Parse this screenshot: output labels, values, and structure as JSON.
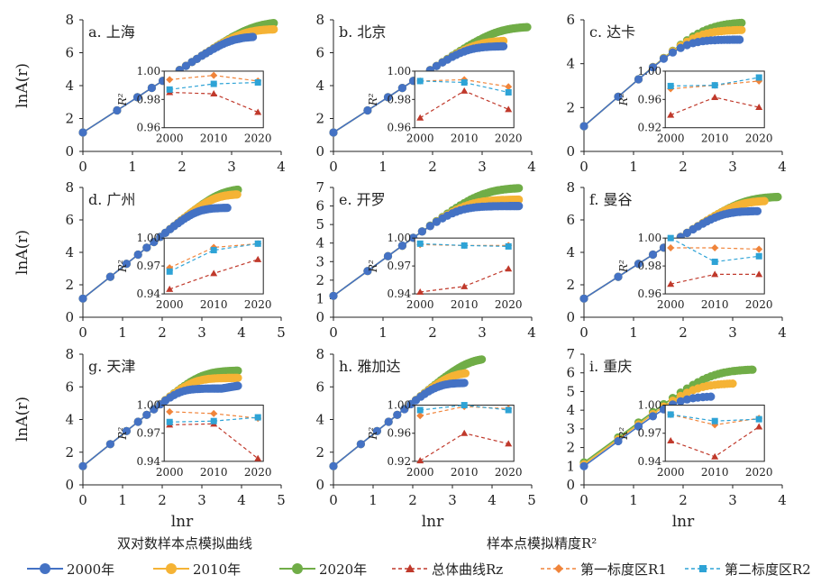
{
  "figure": {
    "y_label_main": "lnA(r)",
    "x_label_main": "lnr",
    "legend_left_title": "双对数样本点模拟曲线",
    "legend_right_title": "样本点模拟精度R²",
    "legend_items": [
      {
        "label": "2000年",
        "color": "#4472C4",
        "kind": "dot"
      },
      {
        "label": "2010年",
        "color": "#F5B335",
        "kind": "dot"
      },
      {
        "label": "2020年",
        "color": "#70AD47",
        "kind": "dot"
      },
      {
        "label": "总体曲线Rz",
        "color": "#C0392B",
        "kind": "triangle"
      },
      {
        "label": "第一标度区R1",
        "color": "#F0843A",
        "kind": "diamond"
      },
      {
        "label": "第二标度区R2",
        "color": "#2EA3D6",
        "kind": "square"
      }
    ]
  },
  "chart_data": [
    {
      "type": "scatter",
      "title": "a. 上海",
      "xlim": [
        0,
        4
      ],
      "ylim": [
        0,
        8
      ],
      "yticks": [
        0,
        2,
        4,
        6,
        8
      ],
      "xticks": [
        0,
        1,
        2,
        3,
        4
      ],
      "x": [
        0,
        0.69,
        1.1,
        1.39,
        1.61,
        1.79,
        1.95,
        2.08,
        2.2,
        2.3,
        2.4,
        2.48,
        2.56,
        2.64,
        2.71,
        2.77,
        2.83,
        2.89,
        2.94,
        3.0,
        3.04,
        3.09,
        3.14,
        3.18,
        3.22,
        3.26,
        3.3,
        3.33,
        3.37,
        3.4,
        3.43,
        3.47,
        3.5,
        3.53,
        3.56,
        3.58,
        3.61,
        3.64,
        3.66,
        3.69,
        3.71,
        3.74,
        3.76,
        3.78,
        3.81,
        3.83,
        3.85,
        3.87,
        3.89,
        3.91
      ],
      "series": [
        {
          "name": "2000年",
          "color": "#4472C4",
          "xmax": 3.45,
          "cap": 7.0,
          "k": 2.6
        },
        {
          "name": "2010年",
          "color": "#F5B335",
          "xmax": 3.85,
          "cap": 7.45,
          "k": 2.3
        },
        {
          "name": "2020年",
          "color": "#70AD47",
          "xmax": 3.85,
          "cap": 7.9,
          "k": 2.0
        }
      ],
      "inset": {
        "ylim": [
          0.96,
          1.0
        ],
        "yticks": [
          "1.00",
          "0.98",
          "0.96"
        ],
        "xticks": [
          "2000",
          "2010",
          "2020"
        ],
        "Rz": [
          0.985,
          0.984,
          0.971
        ],
        "R1": [
          0.994,
          0.997,
          0.993
        ],
        "R2": [
          0.987,
          0.991,
          0.992
        ]
      }
    },
    {
      "type": "scatter",
      "title": "b. 北京",
      "xlim": [
        0,
        4
      ],
      "ylim": [
        0,
        8
      ],
      "yticks": [
        0,
        2,
        4,
        6,
        8
      ],
      "xticks": [
        0,
        1,
        2,
        3,
        4
      ],
      "series": [
        {
          "name": "2000年",
          "color": "#4472C4",
          "xmax": 3.45,
          "cap": 6.4,
          "k": 2.6
        },
        {
          "name": "2010年",
          "color": "#F5B335",
          "xmax": 3.45,
          "cap": 6.75,
          "k": 2.3
        },
        {
          "name": "2020年",
          "color": "#70AD47",
          "xmax": 3.95,
          "cap": 7.6,
          "k": 2.0
        }
      ],
      "inset": {
        "ylim": [
          0.96,
          1.0
        ],
        "yticks": [
          "1.00",
          "0.98",
          "0.96"
        ],
        "xticks": [
          "2000",
          "2010",
          "2020"
        ],
        "Rz": [
          0.967,
          0.986,
          0.973
        ],
        "R1": [
          0.993,
          0.994,
          0.989
        ],
        "R2": [
          0.993,
          0.992,
          0.985
        ]
      }
    },
    {
      "type": "scatter",
      "title": "c. 达卡",
      "xlim": [
        0,
        4
      ],
      "ylim": [
        0,
        6
      ],
      "yticks": [
        0,
        2,
        4,
        6
      ],
      "xticks": [
        0,
        1,
        2,
        3,
        4
      ],
      "series": [
        {
          "name": "2000年",
          "color": "#4472C4",
          "xmax": 3.15,
          "cap": 5.1,
          "k": 2.3
        },
        {
          "name": "2010年",
          "color": "#F5B335",
          "xmax": 3.2,
          "cap": 5.55,
          "k": 2.0
        },
        {
          "name": "2020年",
          "color": "#70AD47",
          "xmax": 3.2,
          "cap": 5.9,
          "k": 1.8
        }
      ],
      "inset": {
        "ylim": [
          0.92,
          1.0
        ],
        "yticks": [
          "1.00",
          "0.96",
          "0.92"
        ],
        "xticks": [
          "2000",
          "2010",
          "2020"
        ],
        "Rz": [
          0.938,
          0.963,
          0.949
        ],
        "R1": [
          0.975,
          0.98,
          0.986
        ],
        "R2": [
          0.979,
          0.98,
          0.991
        ]
      }
    },
    {
      "type": "scatter",
      "title": "d. 广州",
      "xlim": [
        0,
        5
      ],
      "ylim": [
        0,
        8
      ],
      "yticks": [
        0,
        2,
        4,
        6,
        8
      ],
      "xticks": [
        0,
        1,
        2,
        3,
        4,
        5
      ],
      "series": [
        {
          "name": "2000年",
          "color": "#4472C4",
          "xmax": 3.65,
          "cap": 6.75,
          "k": 2.6
        },
        {
          "name": "2010年",
          "color": "#F5B335",
          "xmax": 3.9,
          "cap": 7.6,
          "k": 2.3
        },
        {
          "name": "2020年",
          "color": "#70AD47",
          "xmax": 4.1,
          "cap": 7.95,
          "k": 2.0
        }
      ],
      "inset": {
        "ylim": [
          0.94,
          1.0
        ],
        "yticks": [
          "1.00",
          "0.97",
          "0.94"
        ],
        "xticks": [
          "2000",
          "2010",
          "2020"
        ],
        "Rz": [
          0.945,
          0.962,
          0.977
        ],
        "R1": [
          0.968,
          0.99,
          0.994
        ],
        "R2": [
          0.964,
          0.987,
          0.994
        ]
      }
    },
    {
      "type": "scatter",
      "title": "e. 开罗",
      "xlim": [
        0,
        4
      ],
      "ylim": [
        0,
        7
      ],
      "yticks": [
        0,
        1,
        2,
        3,
        4,
        5,
        6,
        7
      ],
      "xticks": [
        0,
        1,
        2,
        3,
        4
      ],
      "series": [
        {
          "name": "2000年",
          "color": "#4472C4",
          "xmax": 3.75,
          "cap": 6.0,
          "k": 2.3
        },
        {
          "name": "2010年",
          "color": "#F5B335",
          "xmax": 3.75,
          "cap": 6.35,
          "k": 2.0
        },
        {
          "name": "2020年",
          "color": "#70AD47",
          "xmax": 3.75,
          "cap": 7.0,
          "k": 1.8
        }
      ],
      "inset": {
        "ylim": [
          0.94,
          1.0
        ],
        "yticks": [
          "1.00",
          "0.97",
          "0.94"
        ],
        "xticks": [
          "2000",
          "2010",
          "2020"
        ],
        "Rz": [
          0.942,
          0.948,
          0.967
        ],
        "R1": [
          0.993,
          0.992,
          0.992
        ],
        "R2": [
          0.994,
          0.992,
          0.991
        ]
      }
    },
    {
      "type": "scatter",
      "title": "f. 曼谷",
      "xlim": [
        0,
        4
      ],
      "ylim": [
        0,
        8
      ],
      "yticks": [
        0,
        2,
        4,
        6,
        8
      ],
      "xticks": [
        0,
        1,
        2,
        3,
        4
      ],
      "series": [
        {
          "name": "2000年",
          "color": "#4472C4",
          "xmax": 3.5,
          "cap": 6.55,
          "k": 2.6
        },
        {
          "name": "2010年",
          "color": "#F5B335",
          "xmax": 3.65,
          "cap": 7.2,
          "k": 2.3
        },
        {
          "name": "2020年",
          "color": "#70AD47",
          "xmax": 3.95,
          "cap": 7.45,
          "k": 2.0
        }
      ],
      "inset": {
        "ylim": [
          0.96,
          1.0
        ],
        "yticks": [
          "1.00",
          "0.98",
          "0.96"
        ],
        "xticks": [
          "2000",
          "2010",
          "2020"
        ],
        "Rz": [
          0.967,
          0.974,
          0.974
        ],
        "R1": [
          0.993,
          0.993,
          0.992
        ],
        "R2": [
          1.0,
          0.983,
          0.987
        ]
      }
    },
    {
      "type": "scatter",
      "title": "g. 天津",
      "xlim": [
        0,
        5
      ],
      "ylim": [
        0,
        8
      ],
      "yticks": [
        0,
        2,
        4,
        6,
        8
      ],
      "xticks": [
        0,
        1,
        2,
        3,
        4,
        5
      ],
      "series": [
        {
          "name": "2000年",
          "color": "#4472C4",
          "xmax": 4.0,
          "cap": 5.9,
          "k": 2.8,
          "tail": 0.4
        },
        {
          "name": "2010年",
          "color": "#F5B335",
          "xmax": 4.0,
          "cap": 6.55,
          "k": 2.3
        },
        {
          "name": "2020年",
          "color": "#70AD47",
          "xmax": 4.05,
          "cap": 7.0,
          "k": 2.0
        }
      ],
      "inset": {
        "ylim": [
          0.94,
          1.0
        ],
        "yticks": [
          "1.00",
          "0.97",
          "0.94"
        ],
        "xticks": [
          "2000",
          "2010",
          "2020"
        ],
        "Rz": [
          0.979,
          0.98,
          0.943
        ],
        "R1": [
          0.993,
          0.991,
          0.986
        ],
        "R2": [
          0.982,
          0.983,
          0.987
        ]
      }
    },
    {
      "type": "scatter",
      "title": "h. 雅加达",
      "xlim": [
        0,
        5
      ],
      "ylim": [
        0,
        8
      ],
      "yticks": [
        0,
        2,
        4,
        6,
        8
      ],
      "xticks": [
        0,
        1,
        2,
        3,
        4,
        5
      ],
      "series": [
        {
          "name": "2000年",
          "color": "#4472C4",
          "xmax": 3.3,
          "cap": 6.25,
          "k": 2.6
        },
        {
          "name": "2010年",
          "color": "#F5B335",
          "xmax": 3.35,
          "cap": 6.9,
          "k": 2.3
        },
        {
          "name": "2020年",
          "color": "#70AD47",
          "xmax": 3.75,
          "cap": 7.8,
          "k": 2.0
        }
      ],
      "inset": {
        "ylim": [
          0.92,
          1.0
        ],
        "yticks": [
          "1.00",
          "0.96",
          "0.92"
        ],
        "xticks": [
          "2000",
          "2010",
          "2020"
        ],
        "Rz": [
          0.921,
          0.96,
          0.945
        ],
        "R1": [
          0.985,
          0.998,
          0.995
        ],
        "R2": [
          0.993,
          1.0,
          0.993
        ]
      }
    },
    {
      "type": "scatter",
      "title": "i. 重庆",
      "xlim": [
        0,
        4
      ],
      "ylim": [
        0,
        7
      ],
      "yticks": [
        0,
        1,
        2,
        3,
        4,
        5,
        6,
        7
      ],
      "xticks": [
        0,
        1,
        2,
        3,
        4
      ],
      "series": [
        {
          "name": "2000年",
          "color": "#4472C4",
          "xmax": 2.6,
          "cap": 4.75,
          "k": 2.3,
          "y0": 1.0
        },
        {
          "name": "2010年",
          "color": "#F5B335",
          "xmax": 3.0,
          "cap": 5.45,
          "k": 2.0,
          "y0": 1.1
        },
        {
          "name": "2020年",
          "color": "#70AD47",
          "xmax": 3.4,
          "cap": 6.2,
          "k": 1.8,
          "y0": 1.2
        }
      ],
      "inset": {
        "ylim": [
          0.94,
          1.0
        ],
        "yticks": [
          "1.00",
          "0.97",
          "0.94"
        ],
        "xticks": [
          "2000",
          "2010",
          "2020"
        ],
        "Rz": [
          0.962,
          0.945,
          0.977
        ],
        "R1": [
          0.99,
          0.979,
          0.986
        ],
        "R2": [
          0.99,
          0.983,
          0.985
        ]
      }
    }
  ]
}
